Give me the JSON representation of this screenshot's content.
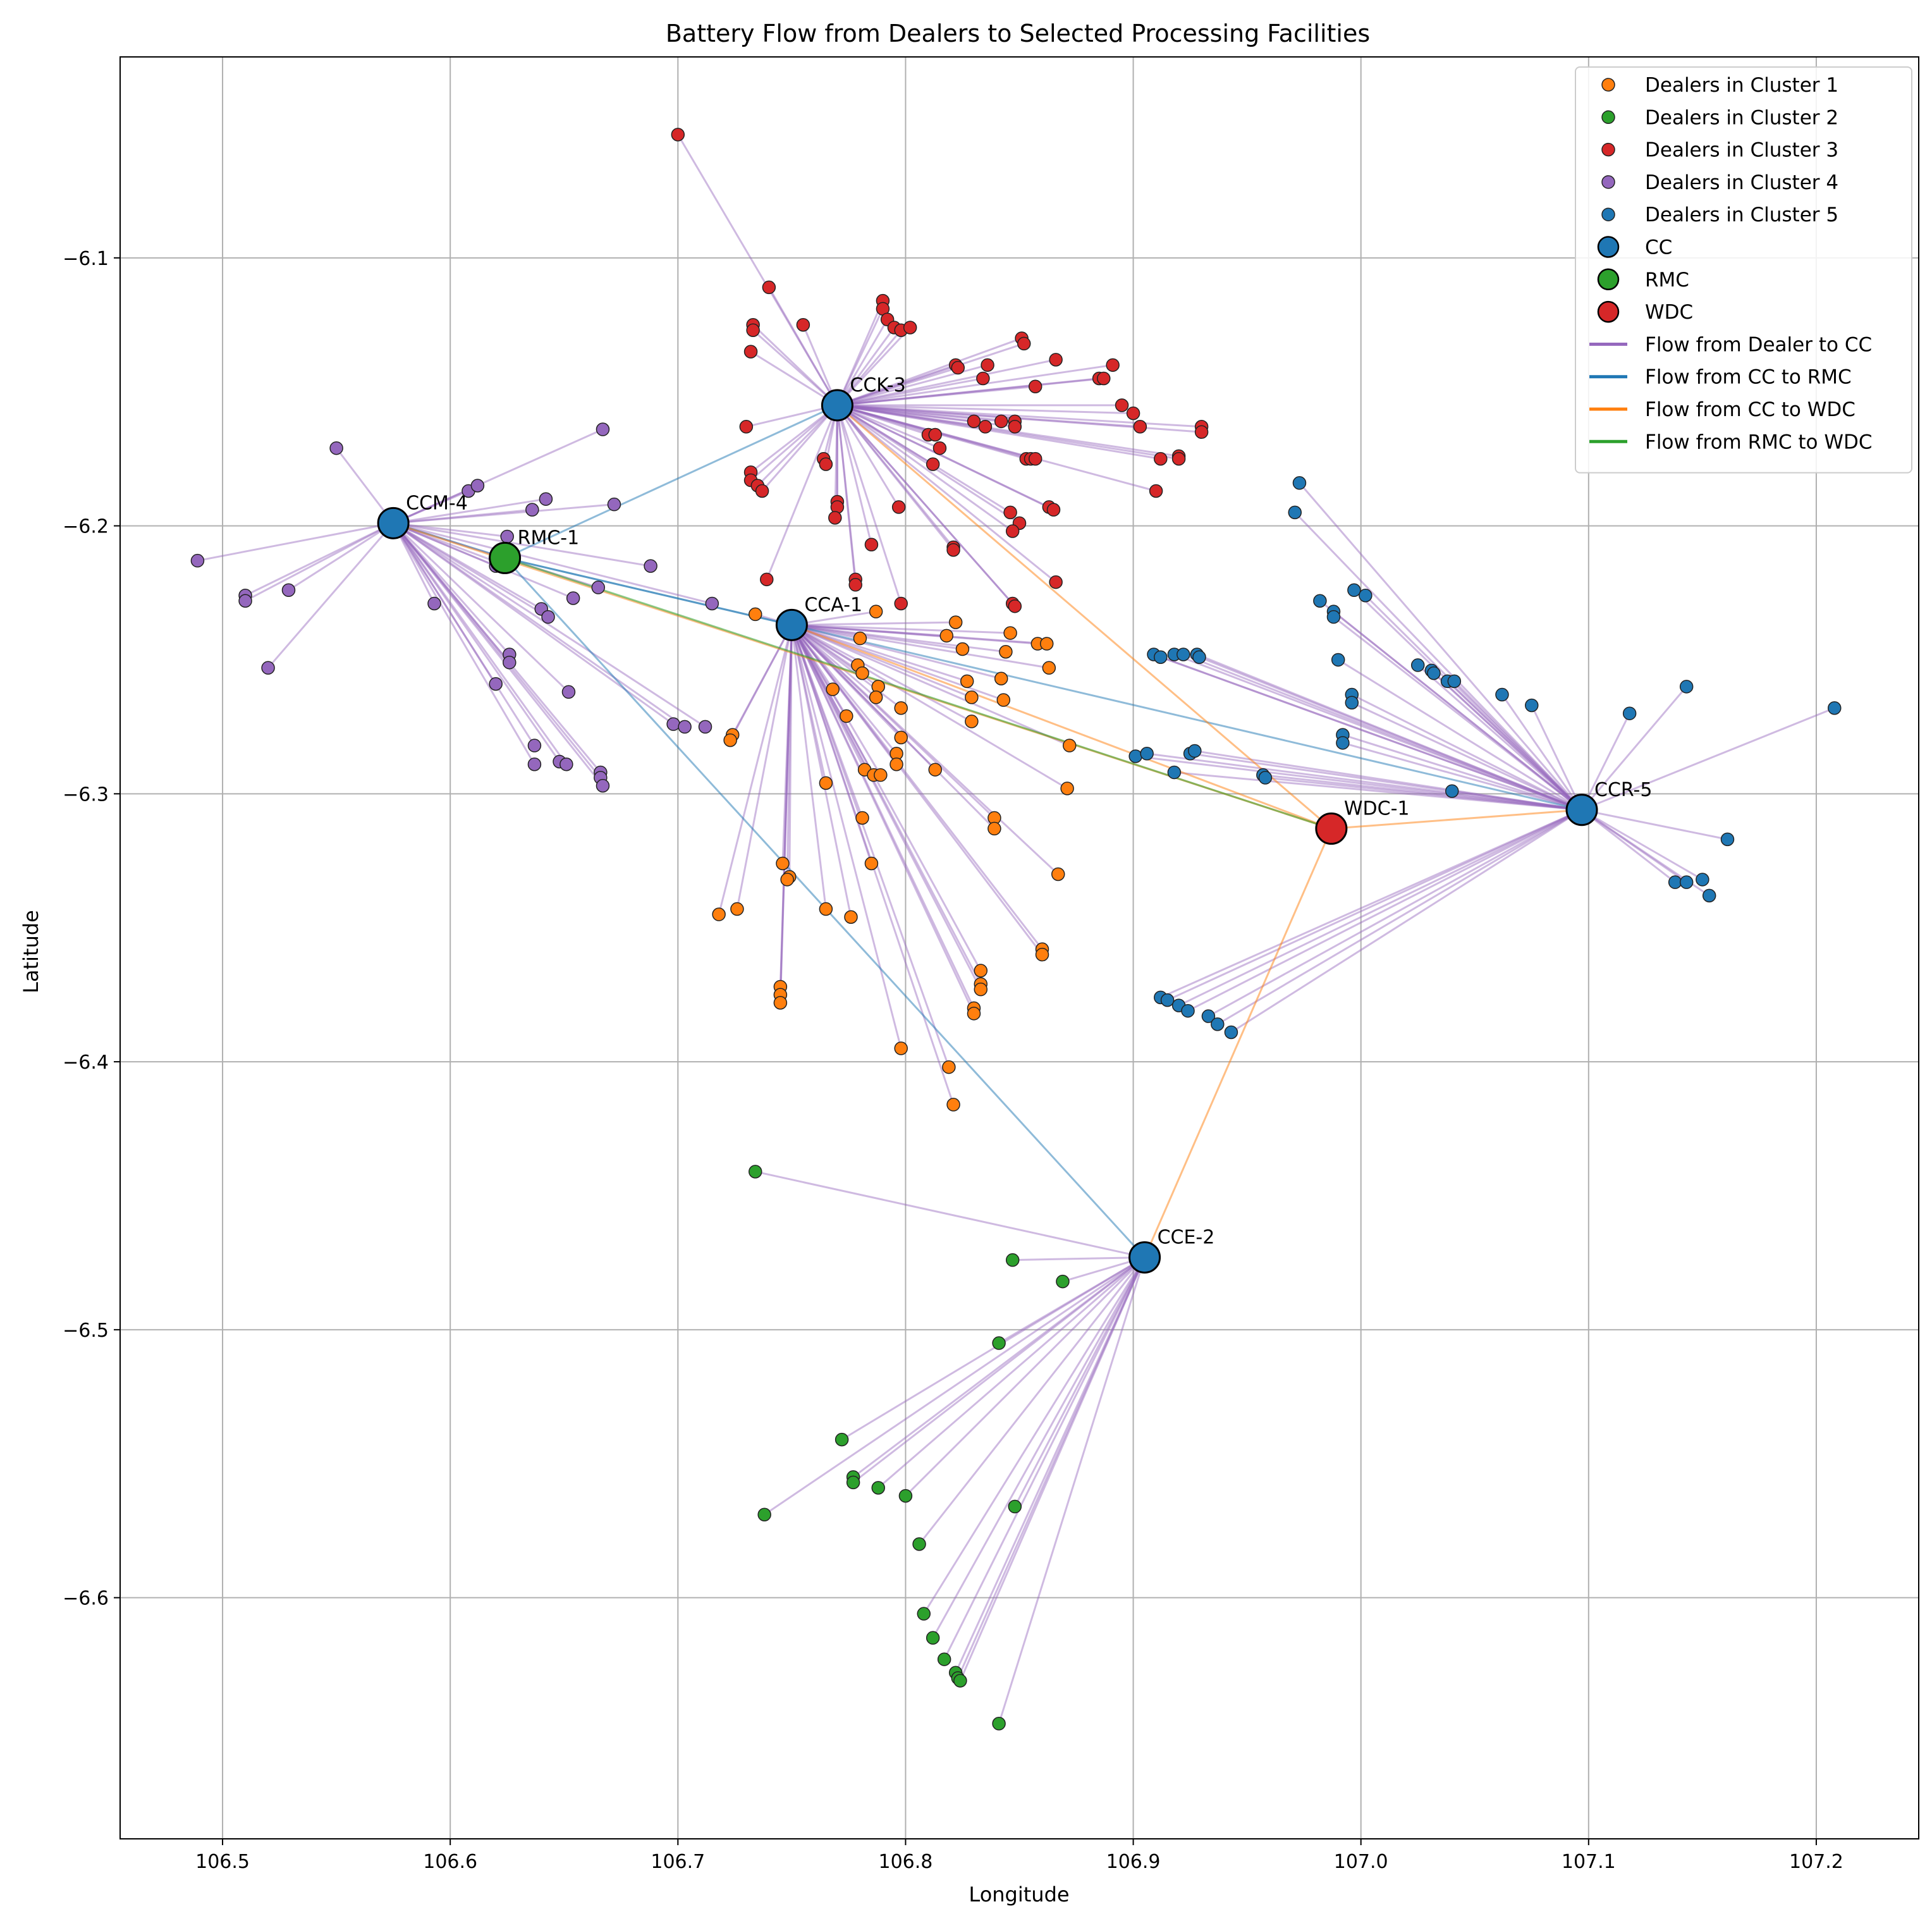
{
  "chart_data": {
    "type": "scatter",
    "title": "Battery Flow from Dealers to Selected Processing Facilities",
    "xlabel": "Longitude",
    "ylabel": "Latitude",
    "xlim": [
      106.455,
      107.245
    ],
    "ylim": [
      -6.69,
      -6.025
    ],
    "xticks": [
      106.5,
      106.6,
      106.7,
      106.8,
      106.9,
      107.0,
      107.1,
      107.2
    ],
    "yticks": [
      -6.1,
      -6.2,
      -6.3,
      -6.4,
      -6.5,
      -6.6
    ],
    "xtick_labels": [
      "106.5",
      "106.6",
      "106.7",
      "106.8",
      "106.9",
      "107.0",
      "107.1",
      "107.2"
    ],
    "ytick_labels": [
      "−6.1",
      "−6.2",
      "−6.3",
      "−6.4",
      "−6.5",
      "−6.6"
    ],
    "grid": true,
    "legend_position": "top-right",
    "colors": {
      "cluster1": "#ff7f0e",
      "cluster2": "#2ca02c",
      "cluster3": "#d62728",
      "cluster4": "#9467bd",
      "cluster5": "#1f77b4",
      "cc": "#1f77b4",
      "rmc": "#2ca02c",
      "wdc": "#d62728",
      "flow_dealer_cc": "#9467bd",
      "flow_cc_rmc": "#1f77b4",
      "flow_cc_wdc": "#ff7f0e",
      "flow_rmc_wdc": "#2ca02c"
    },
    "facilities": [
      {
        "name": "CCA-1",
        "kind": "CC",
        "x": 106.75,
        "y": -6.237
      },
      {
        "name": "CCE-2",
        "kind": "CC",
        "x": 106.905,
        "y": -6.473
      },
      {
        "name": "CCK-3",
        "kind": "CC",
        "x": 106.77,
        "y": -6.155
      },
      {
        "name": "CCM-4",
        "kind": "CC",
        "x": 106.575,
        "y": -6.199
      },
      {
        "name": "CCR-5",
        "kind": "CC",
        "x": 107.097,
        "y": -6.306
      },
      {
        "name": "RMC-1",
        "kind": "RMC",
        "x": 106.624,
        "y": -6.212
      },
      {
        "name": "WDC-1",
        "kind": "WDC",
        "x": 106.987,
        "y": -6.313
      }
    ],
    "flows_cc_rmc": [
      {
        "from": "CCA-1",
        "to": "RMC-1"
      },
      {
        "from": "CCE-2",
        "to": "RMC-1"
      },
      {
        "from": "CCK-3",
        "to": "RMC-1"
      },
      {
        "from": "CCM-4",
        "to": "RMC-1"
      },
      {
        "from": "CCR-5",
        "to": "RMC-1"
      }
    ],
    "flows_cc_wdc": [
      {
        "from": "CCA-1",
        "to": "WDC-1"
      },
      {
        "from": "CCE-2",
        "to": "WDC-1"
      },
      {
        "from": "CCK-3",
        "to": "WDC-1"
      },
      {
        "from": "CCM-4",
        "to": "WDC-1"
      },
      {
        "from": "CCR-5",
        "to": "WDC-1"
      }
    ],
    "flows_rmc_wdc": [
      {
        "from": "RMC-1",
        "to": "WDC-1"
      }
    ],
    "clusters": [
      {
        "name": "Dealers in Cluster 1",
        "cc": "CCA-1",
        "color_key": "cluster1",
        "points": [
          [
            106.734,
            -6.233
          ],
          [
            106.787,
            -6.232
          ],
          [
            106.822,
            -6.236
          ],
          [
            106.846,
            -6.24
          ],
          [
            106.858,
            -6.244
          ],
          [
            106.862,
            -6.244
          ],
          [
            106.78,
            -6.242
          ],
          [
            106.818,
            -6.241
          ],
          [
            106.825,
            -6.246
          ],
          [
            106.844,
            -6.247
          ],
          [
            106.863,
            -6.253
          ],
          [
            106.779,
            -6.252
          ],
          [
            106.781,
            -6.255
          ],
          [
            106.788,
            -6.26
          ],
          [
            106.787,
            -6.264
          ],
          [
            106.768,
            -6.261
          ],
          [
            106.827,
            -6.258
          ],
          [
            106.842,
            -6.257
          ],
          [
            106.829,
            -6.264
          ],
          [
            106.843,
            -6.265
          ],
          [
            106.798,
            -6.268
          ],
          [
            106.774,
            -6.271
          ],
          [
            106.829,
            -6.273
          ],
          [
            106.724,
            -6.278
          ],
          [
            106.723,
            -6.28
          ],
          [
            106.798,
            -6.279
          ],
          [
            106.872,
            -6.282
          ],
          [
            106.796,
            -6.285
          ],
          [
            106.796,
            -6.289
          ],
          [
            106.782,
            -6.291
          ],
          [
            106.786,
            -6.293
          ],
          [
            106.789,
            -6.293
          ],
          [
            106.813,
            -6.291
          ],
          [
            106.765,
            -6.296
          ],
          [
            106.871,
            -6.298
          ],
          [
            106.781,
            -6.309
          ],
          [
            106.839,
            -6.309
          ],
          [
            106.839,
            -6.313
          ],
          [
            106.746,
            -6.326
          ],
          [
            106.749,
            -6.331
          ],
          [
            106.748,
            -6.332
          ],
          [
            106.785,
            -6.326
          ],
          [
            106.867,
            -6.33
          ],
          [
            106.718,
            -6.345
          ],
          [
            106.726,
            -6.343
          ],
          [
            106.765,
            -6.343
          ],
          [
            106.776,
            -6.346
          ],
          [
            106.86,
            -6.358
          ],
          [
            106.86,
            -6.36
          ],
          [
            106.833,
            -6.366
          ],
          [
            106.833,
            -6.371
          ],
          [
            106.833,
            -6.373
          ],
          [
            106.745,
            -6.372
          ],
          [
            106.745,
            -6.375
          ],
          [
            106.745,
            -6.378
          ],
          [
            106.83,
            -6.38
          ],
          [
            106.83,
            -6.382
          ],
          [
            106.798,
            -6.395
          ],
          [
            106.819,
            -6.402
          ],
          [
            106.821,
            -6.416
          ]
        ]
      },
      {
        "name": "Dealers in Cluster 2",
        "cc": "CCE-2",
        "color_key": "cluster2",
        "points": [
          [
            106.734,
            -6.441
          ],
          [
            106.847,
            -6.474
          ],
          [
            106.869,
            -6.482
          ],
          [
            106.841,
            -6.505
          ],
          [
            106.772,
            -6.541
          ],
          [
            106.777,
            -6.555
          ],
          [
            106.777,
            -6.557
          ],
          [
            106.788,
            -6.559
          ],
          [
            106.8,
            -6.562
          ],
          [
            106.848,
            -6.566
          ],
          [
            106.738,
            -6.569
          ],
          [
            106.806,
            -6.58
          ],
          [
            106.808,
            -6.606
          ],
          [
            106.812,
            -6.615
          ],
          [
            106.817,
            -6.623
          ],
          [
            106.822,
            -6.628
          ],
          [
            106.823,
            -6.63
          ],
          [
            106.824,
            -6.631
          ],
          [
            106.841,
            -6.647
          ]
        ]
      },
      {
        "name": "Dealers in Cluster 3",
        "cc": "CCK-3",
        "color_key": "cluster3",
        "points": [
          [
            106.7,
            -6.054
          ],
          [
            106.74,
            -6.111
          ],
          [
            106.79,
            -6.116
          ],
          [
            106.79,
            -6.119
          ],
          [
            106.792,
            -6.123
          ],
          [
            106.795,
            -6.126
          ],
          [
            106.798,
            -6.127
          ],
          [
            106.802,
            -6.126
          ],
          [
            106.733,
            -6.125
          ],
          [
            106.733,
            -6.127
          ],
          [
            106.755,
            -6.125
          ],
          [
            106.732,
            -6.135
          ],
          [
            106.851,
            -6.13
          ],
          [
            106.852,
            -6.132
          ],
          [
            106.822,
            -6.14
          ],
          [
            106.823,
            -6.141
          ],
          [
            106.836,
            -6.14
          ],
          [
            106.866,
            -6.138
          ],
          [
            106.891,
            -6.14
          ],
          [
            106.834,
            -6.145
          ],
          [
            106.885,
            -6.145
          ],
          [
            106.887,
            -6.145
          ],
          [
            106.857,
            -6.148
          ],
          [
            106.895,
            -6.155
          ],
          [
            106.9,
            -6.158
          ],
          [
            106.83,
            -6.161
          ],
          [
            106.835,
            -6.163
          ],
          [
            106.842,
            -6.161
          ],
          [
            106.848,
            -6.161
          ],
          [
            106.848,
            -6.163
          ],
          [
            106.903,
            -6.163
          ],
          [
            106.93,
            -6.163
          ],
          [
            106.93,
            -6.165
          ],
          [
            106.73,
            -6.163
          ],
          [
            106.81,
            -6.166
          ],
          [
            106.813,
            -6.166
          ],
          [
            106.815,
            -6.171
          ],
          [
            106.853,
            -6.175
          ],
          [
            106.855,
            -6.175
          ],
          [
            106.857,
            -6.175
          ],
          [
            106.912,
            -6.175
          ],
          [
            106.92,
            -6.174
          ],
          [
            106.92,
            -6.175
          ],
          [
            106.764,
            -6.175
          ],
          [
            106.765,
            -6.177
          ],
          [
            106.812,
            -6.177
          ],
          [
            106.732,
            -6.18
          ],
          [
            106.732,
            -6.183
          ],
          [
            106.735,
            -6.185
          ],
          [
            106.737,
            -6.187
          ],
          [
            106.91,
            -6.187
          ],
          [
            106.77,
            -6.191
          ],
          [
            106.77,
            -6.193
          ],
          [
            106.769,
            -6.197
          ],
          [
            106.797,
            -6.193
          ],
          [
            106.846,
            -6.195
          ],
          [
            106.85,
            -6.199
          ],
          [
            106.863,
            -6.193
          ],
          [
            106.865,
            -6.194
          ],
          [
            106.847,
            -6.202
          ],
          [
            106.785,
            -6.207
          ],
          [
            106.821,
            -6.208
          ],
          [
            106.821,
            -6.209
          ],
          [
            106.739,
            -6.22
          ],
          [
            106.778,
            -6.22
          ],
          [
            106.778,
            -6.222
          ],
          [
            106.866,
            -6.221
          ],
          [
            106.798,
            -6.229
          ],
          [
            106.847,
            -6.229
          ],
          [
            106.848,
            -6.23
          ]
        ]
      },
      {
        "name": "Dealers in Cluster 4",
        "cc": "CCM-4",
        "color_key": "cluster4",
        "points": [
          [
            106.55,
            -6.171
          ],
          [
            106.667,
            -6.164
          ],
          [
            106.608,
            -6.187
          ],
          [
            106.612,
            -6.185
          ],
          [
            106.642,
            -6.19
          ],
          [
            106.636,
            -6.194
          ],
          [
            106.672,
            -6.192
          ],
          [
            106.625,
            -6.204
          ],
          [
            106.489,
            -6.213
          ],
          [
            106.688,
            -6.215
          ],
          [
            106.62,
            -6.215
          ],
          [
            106.622,
            -6.214
          ],
          [
            106.665,
            -6.223
          ],
          [
            106.51,
            -6.226
          ],
          [
            106.51,
            -6.228
          ],
          [
            106.529,
            -6.224
          ],
          [
            106.654,
            -6.227
          ],
          [
            106.593,
            -6.229
          ],
          [
            106.715,
            -6.229
          ],
          [
            106.64,
            -6.231
          ],
          [
            106.643,
            -6.234
          ],
          [
            106.626,
            -6.248
          ],
          [
            106.626,
            -6.251
          ],
          [
            106.52,
            -6.253
          ],
          [
            106.62,
            -6.259
          ],
          [
            106.652,
            -6.262
          ],
          [
            106.698,
            -6.274
          ],
          [
            106.703,
            -6.275
          ],
          [
            106.712,
            -6.275
          ],
          [
            106.637,
            -6.282
          ],
          [
            106.648,
            -6.288
          ],
          [
            106.651,
            -6.289
          ],
          [
            106.637,
            -6.289
          ],
          [
            106.666,
            -6.292
          ],
          [
            106.666,
            -6.294
          ],
          [
            106.667,
            -6.297
          ]
        ]
      },
      {
        "name": "Dealers in Cluster 5",
        "cc": "CCR-5",
        "color_key": "cluster5",
        "points": [
          [
            106.973,
            -6.184
          ],
          [
            106.971,
            -6.195
          ],
          [
            106.997,
            -6.224
          ],
          [
            107.002,
            -6.226
          ],
          [
            106.982,
            -6.228
          ],
          [
            106.988,
            -6.232
          ],
          [
            106.988,
            -6.234
          ],
          [
            106.909,
            -6.248
          ],
          [
            106.912,
            -6.249
          ],
          [
            106.918,
            -6.248
          ],
          [
            106.922,
            -6.248
          ],
          [
            106.928,
            -6.248
          ],
          [
            106.929,
            -6.249
          ],
          [
            106.99,
            -6.25
          ],
          [
            107.025,
            -6.252
          ],
          [
            107.031,
            -6.254
          ],
          [
            107.032,
            -6.255
          ],
          [
            107.038,
            -6.258
          ],
          [
            107.041,
            -6.258
          ],
          [
            106.996,
            -6.263
          ],
          [
            106.996,
            -6.266
          ],
          [
            107.062,
            -6.263
          ],
          [
            107.075,
            -6.267
          ],
          [
            107.143,
            -6.26
          ],
          [
            107.208,
            -6.268
          ],
          [
            107.118,
            -6.27
          ],
          [
            106.992,
            -6.278
          ],
          [
            106.992,
            -6.281
          ],
          [
            106.901,
            -6.286
          ],
          [
            106.906,
            -6.285
          ],
          [
            106.925,
            -6.285
          ],
          [
            106.927,
            -6.284
          ],
          [
            106.918,
            -6.292
          ],
          [
            106.957,
            -6.293
          ],
          [
            106.958,
            -6.294
          ],
          [
            107.04,
            -6.299
          ],
          [
            107.161,
            -6.317
          ],
          [
            107.138,
            -6.333
          ],
          [
            107.143,
            -6.333
          ],
          [
            107.15,
            -6.332
          ],
          [
            107.153,
            -6.338
          ],
          [
            106.912,
            -6.376
          ],
          [
            106.915,
            -6.377
          ],
          [
            106.92,
            -6.379
          ],
          [
            106.924,
            -6.381
          ],
          [
            106.933,
            -6.383
          ],
          [
            106.937,
            -6.386
          ],
          [
            106.943,
            -6.389
          ]
        ]
      }
    ],
    "legend": [
      {
        "label": "Dealers in Cluster 1",
        "marker": "dot",
        "color_key": "cluster1"
      },
      {
        "label": "Dealers in Cluster 2",
        "marker": "dot",
        "color_key": "cluster2"
      },
      {
        "label": "Dealers in Cluster 3",
        "marker": "dot",
        "color_key": "cluster3"
      },
      {
        "label": "Dealers in Cluster 4",
        "marker": "dot",
        "color_key": "cluster4"
      },
      {
        "label": "Dealers in Cluster 5",
        "marker": "dot",
        "color_key": "cluster5"
      },
      {
        "label": "CC",
        "marker": "big-dot",
        "color_key": "cc"
      },
      {
        "label": "RMC",
        "marker": "big-dot",
        "color_key": "rmc"
      },
      {
        "label": "WDC",
        "marker": "big-dot",
        "color_key": "wdc"
      },
      {
        "label": "Flow from Dealer to CC",
        "marker": "line",
        "color_key": "flow_dealer_cc"
      },
      {
        "label": "Flow from CC to RMC",
        "marker": "line",
        "color_key": "flow_cc_rmc"
      },
      {
        "label": "Flow from CC to WDC",
        "marker": "line",
        "color_key": "flow_cc_wdc"
      },
      {
        "label": "Flow from RMC to WDC",
        "marker": "line",
        "color_key": "flow_rmc_wdc"
      }
    ]
  }
}
